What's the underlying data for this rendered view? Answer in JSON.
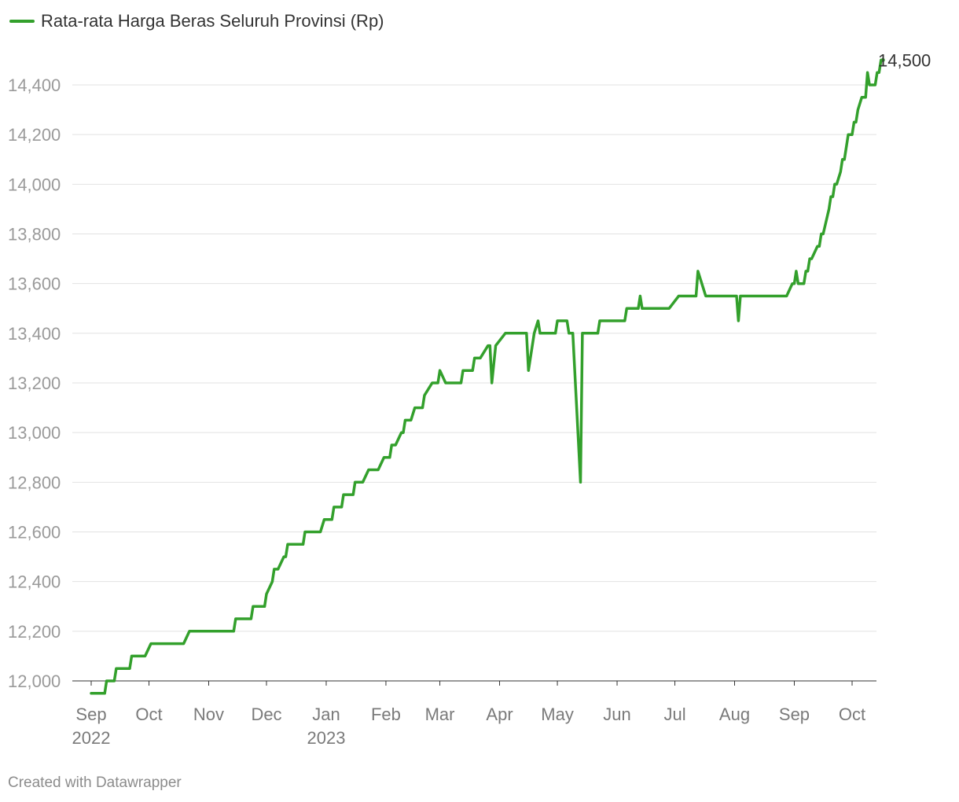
{
  "chart_data": {
    "type": "line",
    "legend": {
      "position": "top-left"
    },
    "grid": true,
    "ylim": [
      11950,
      14500
    ],
    "y_ticks": [
      12000,
      12200,
      12400,
      12600,
      12800,
      13000,
      13200,
      13400,
      13600,
      13800,
      14000,
      14200,
      14400
    ],
    "y_tick_labels": [
      "12,000",
      "12,200",
      "12,400",
      "12,600",
      "12,800",
      "13,000",
      "13,200",
      "13,400",
      "13,600",
      "13,800",
      "14,000",
      "14,200",
      "14,400"
    ],
    "x_range": [
      "2022-09-01",
      "2023-10-08"
    ],
    "x_ticks": [
      {
        "date": "2022-09-01",
        "label": "Sep",
        "year": "2022"
      },
      {
        "date": "2022-10-01",
        "label": "Oct",
        "year": ""
      },
      {
        "date": "2022-11-01",
        "label": "Nov",
        "year": ""
      },
      {
        "date": "2022-12-01",
        "label": "Dec",
        "year": ""
      },
      {
        "date": "2023-01-01",
        "label": "Jan",
        "year": "2023"
      },
      {
        "date": "2023-02-01",
        "label": "Feb",
        "year": ""
      },
      {
        "date": "2023-03-01",
        "label": "Mar",
        "year": ""
      },
      {
        "date": "2023-04-01",
        "label": "Apr",
        "year": ""
      },
      {
        "date": "2023-05-01",
        "label": "May",
        "year": ""
      },
      {
        "date": "2023-06-01",
        "label": "Jun",
        "year": ""
      },
      {
        "date": "2023-07-01",
        "label": "Jul",
        "year": ""
      },
      {
        "date": "2023-08-01",
        "label": "Aug",
        "year": ""
      },
      {
        "date": "2023-09-01",
        "label": "Sep",
        "year": ""
      },
      {
        "date": "2023-10-01",
        "label": "Oct",
        "year": ""
      }
    ],
    "series": [
      {
        "name": "Rata-rata Harga Beras Seluruh Provinsi (Rp)",
        "color": "#33a02c",
        "end_label": "14,500",
        "points": [
          [
            "2022-09-01",
            11950
          ],
          [
            "2022-09-08",
            11950
          ],
          [
            "2022-09-09",
            12000
          ],
          [
            "2022-09-13",
            12000
          ],
          [
            "2022-09-14",
            12050
          ],
          [
            "2022-09-21",
            12050
          ],
          [
            "2022-09-22",
            12100
          ],
          [
            "2022-09-29",
            12100
          ],
          [
            "2022-10-02",
            12150
          ],
          [
            "2022-10-19",
            12150
          ],
          [
            "2022-10-22",
            12200
          ],
          [
            "2022-11-14",
            12200
          ],
          [
            "2022-11-15",
            12250
          ],
          [
            "2022-11-23",
            12250
          ],
          [
            "2022-11-24",
            12300
          ],
          [
            "2022-11-30",
            12300
          ],
          [
            "2022-12-01",
            12350
          ],
          [
            "2022-12-04",
            12400
          ],
          [
            "2022-12-05",
            12450
          ],
          [
            "2022-12-07",
            12450
          ],
          [
            "2022-12-10",
            12500
          ],
          [
            "2022-12-11",
            12500
          ],
          [
            "2022-12-12",
            12550
          ],
          [
            "2022-12-20",
            12550
          ],
          [
            "2022-12-21",
            12600
          ],
          [
            "2022-12-29",
            12600
          ],
          [
            "2022-12-31",
            12650
          ],
          [
            "2023-01-04",
            12650
          ],
          [
            "2023-01-05",
            12700
          ],
          [
            "2023-01-09",
            12700
          ],
          [
            "2023-01-10",
            12750
          ],
          [
            "2023-01-15",
            12750
          ],
          [
            "2023-01-16",
            12800
          ],
          [
            "2023-01-20",
            12800
          ],
          [
            "2023-01-23",
            12850
          ],
          [
            "2023-01-28",
            12850
          ],
          [
            "2023-01-31",
            12900
          ],
          [
            "2023-02-03",
            12900
          ],
          [
            "2023-02-04",
            12950
          ],
          [
            "2023-02-06",
            12950
          ],
          [
            "2023-02-09",
            13000
          ],
          [
            "2023-02-10",
            13000
          ],
          [
            "2023-02-11",
            13050
          ],
          [
            "2023-02-14",
            13050
          ],
          [
            "2023-02-16",
            13100
          ],
          [
            "2023-02-20",
            13100
          ],
          [
            "2023-02-21",
            13150
          ],
          [
            "2023-02-25",
            13200
          ],
          [
            "2023-02-28",
            13200
          ],
          [
            "2023-03-01",
            13250
          ],
          [
            "2023-03-04",
            13200
          ],
          [
            "2023-03-12",
            13200
          ],
          [
            "2023-03-13",
            13250
          ],
          [
            "2023-03-18",
            13250
          ],
          [
            "2023-03-19",
            13300
          ],
          [
            "2023-03-22",
            13300
          ],
          [
            "2023-03-26",
            13350
          ],
          [
            "2023-03-27",
            13350
          ],
          [
            "2023-03-28",
            13200
          ],
          [
            "2023-03-30",
            13350
          ],
          [
            "2023-04-04",
            13400
          ],
          [
            "2023-04-15",
            13400
          ],
          [
            "2023-04-16",
            13250
          ],
          [
            "2023-04-19",
            13400
          ],
          [
            "2023-04-21",
            13450
          ],
          [
            "2023-04-22",
            13400
          ],
          [
            "2023-04-30",
            13400
          ],
          [
            "2023-05-01",
            13450
          ],
          [
            "2023-05-06",
            13450
          ],
          [
            "2023-05-07",
            13400
          ],
          [
            "2023-05-09",
            13400
          ],
          [
            "2023-05-13",
            12800
          ],
          [
            "2023-05-14",
            13400
          ],
          [
            "2023-05-22",
            13400
          ],
          [
            "2023-05-23",
            13450
          ],
          [
            "2023-06-05",
            13450
          ],
          [
            "2023-06-06",
            13500
          ],
          [
            "2023-06-12",
            13500
          ],
          [
            "2023-06-13",
            13550
          ],
          [
            "2023-06-14",
            13500
          ],
          [
            "2023-06-28",
            13500
          ],
          [
            "2023-07-03",
            13550
          ],
          [
            "2023-07-12",
            13550
          ],
          [
            "2023-07-13",
            13650
          ],
          [
            "2023-07-17",
            13550
          ],
          [
            "2023-08-02",
            13550
          ],
          [
            "2023-08-03",
            13450
          ],
          [
            "2023-08-04",
            13550
          ],
          [
            "2023-08-28",
            13550
          ],
          [
            "2023-08-31",
            13600
          ],
          [
            "2023-09-01",
            13600
          ],
          [
            "2023-09-02",
            13650
          ],
          [
            "2023-09-03",
            13600
          ],
          [
            "2023-09-06",
            13600
          ],
          [
            "2023-09-07",
            13650
          ],
          [
            "2023-09-08",
            13650
          ],
          [
            "2023-09-09",
            13700
          ],
          [
            "2023-09-10",
            13700
          ],
          [
            "2023-09-13",
            13750
          ],
          [
            "2023-09-14",
            13750
          ],
          [
            "2023-09-15",
            13800
          ],
          [
            "2023-09-16",
            13800
          ],
          [
            "2023-09-19",
            13900
          ],
          [
            "2023-09-20",
            13950
          ],
          [
            "2023-09-21",
            13950
          ],
          [
            "2023-09-22",
            14000
          ],
          [
            "2023-09-23",
            14000
          ],
          [
            "2023-09-25",
            14050
          ],
          [
            "2023-09-26",
            14100
          ],
          [
            "2023-09-27",
            14100
          ],
          [
            "2023-09-29",
            14200
          ],
          [
            "2023-10-01",
            14200
          ],
          [
            "2023-10-02",
            14250
          ],
          [
            "2023-10-03",
            14250
          ],
          [
            "2023-10-04",
            14300
          ],
          [
            "2023-10-06",
            14350
          ],
          [
            "2023-10-08",
            14350
          ],
          [
            "2023-10-09",
            14450
          ],
          [
            "2023-10-10",
            14400
          ],
          [
            "2023-10-13",
            14400
          ],
          [
            "2023-10-14",
            14450
          ],
          [
            "2023-10-15",
            14450
          ],
          [
            "2023-10-16",
            14500
          ],
          [
            "2023-10-17",
            14500
          ]
        ]
      }
    ]
  },
  "legend_label": "Rata-rata Harga Beras Seluruh Provinsi (Rp)",
  "footer": "Created with Datawrapper"
}
